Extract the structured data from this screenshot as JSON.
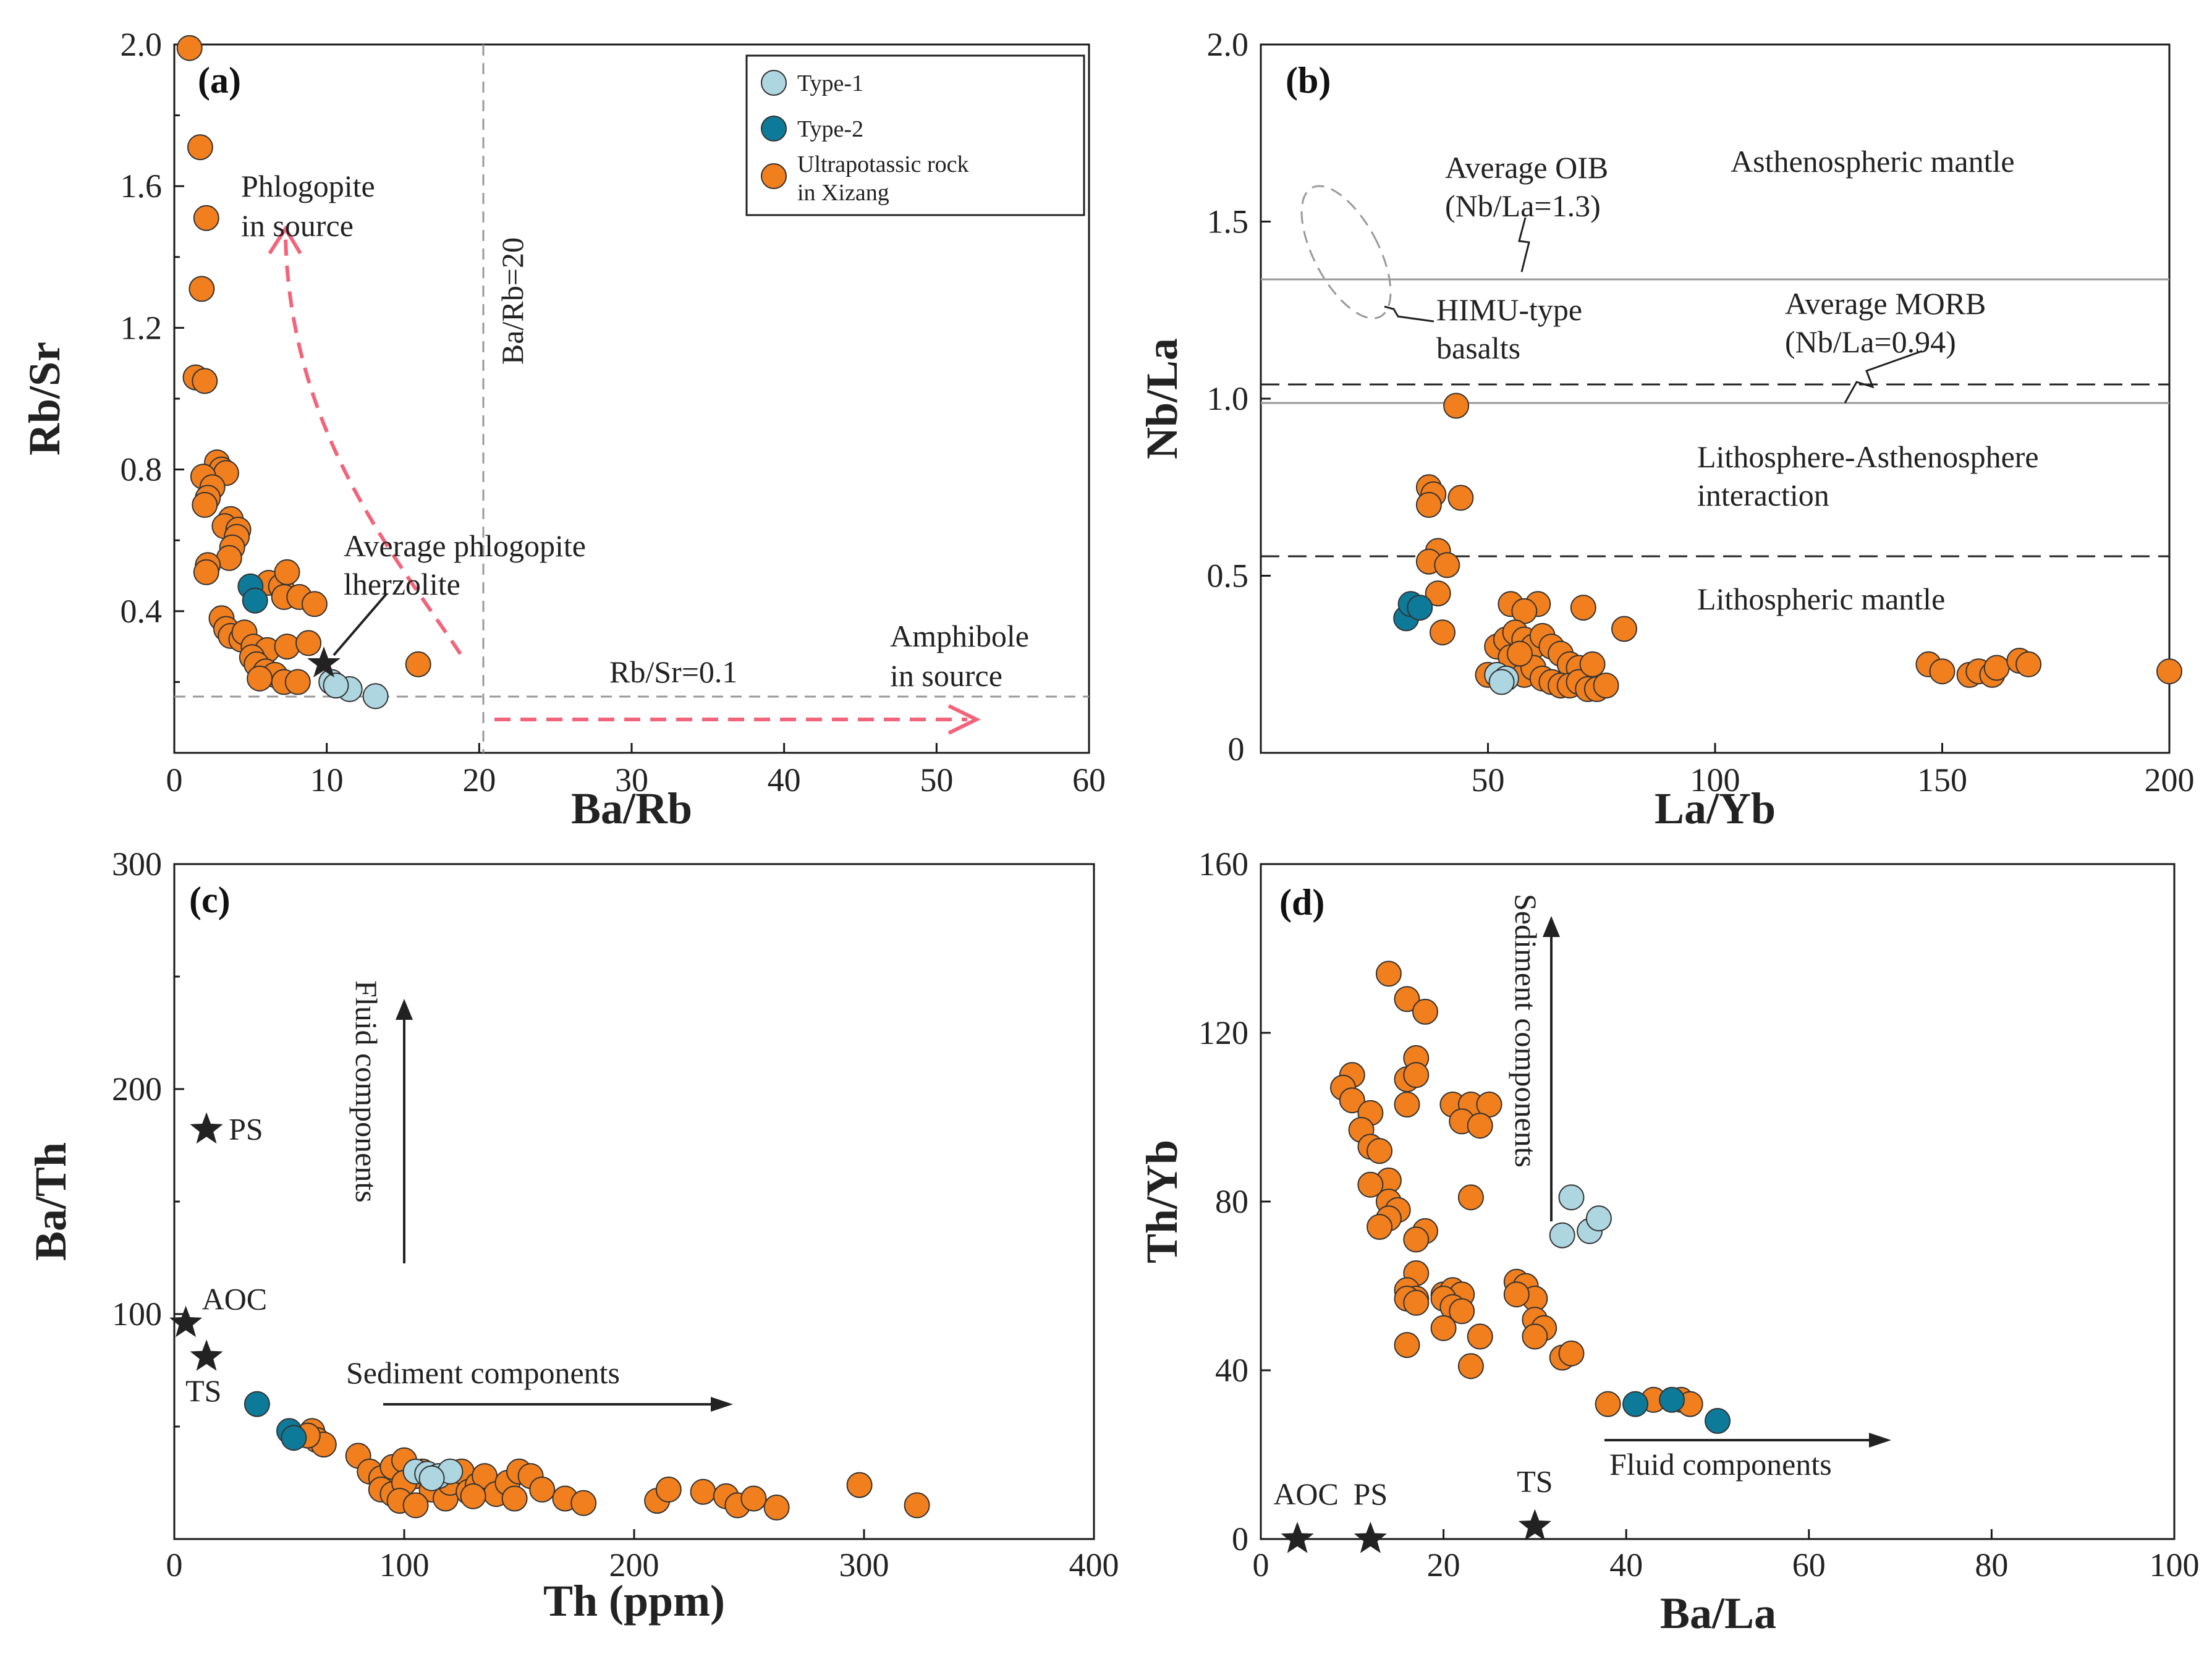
{
  "colors": {
    "type1": "#aed6e0",
    "type2": "#0e7a99",
    "ultrapotassic": "#f27f1d",
    "marker_edge": "#333333",
    "pink_arrow": "#f2647a"
  },
  "legend": {
    "type1": "Type-1",
    "type2": "Type-2",
    "ultrapotassic_line1": "Ultrapotassic rock",
    "ultrapotassic_line2": "in Xizang"
  },
  "chart_data": [
    {
      "id": "a",
      "panel_label": "(a)",
      "type": "scatter",
      "xlabel": "Ba/Rb",
      "ylabel": "Rb/Sr",
      "xlim": [
        0,
        60
      ],
      "ylim": [
        0,
        2.0
      ],
      "xticks": [
        0,
        10,
        20,
        30,
        40,
        50,
        60
      ],
      "yticks": [
        0.4,
        0.8,
        1.2,
        1.6,
        2.0
      ],
      "ytick_labels": [
        "0.4",
        "0.8",
        "1.2",
        "1.6",
        "2.0"
      ],
      "annotations": {
        "phlogopite_1": "Phlogopite",
        "phlogopite_2": "in source",
        "ba_rb_line": "Ba/Rb=20",
        "avg_phl_1": "Average phlogopite",
        "avg_phl_2": "lherzolite",
        "rb_sr_line": "Rb/Sr=0.1",
        "amph_1": "Amphibole",
        "amph_2": "in source"
      },
      "series": [
        {
          "name": "Type-1",
          "points": [
            [
              10.3,
              0.2
            ],
            [
              11.5,
              0.18
            ],
            [
              13.2,
              0.16
            ],
            [
              10.6,
              0.19
            ]
          ]
        },
        {
          "name": "Type-2",
          "points": [
            [
              5.0,
              0.47
            ],
            [
              5.3,
              0.43
            ]
          ]
        },
        {
          "name": "Ultrapotassic rock in Xizang",
          "points": [
            [
              1.0,
              1.99
            ],
            [
              1.7,
              1.71
            ],
            [
              2.1,
              1.51
            ],
            [
              1.8,
              1.31
            ],
            [
              1.4,
              1.06
            ],
            [
              2.0,
              1.05
            ],
            [
              2.8,
              0.82
            ],
            [
              3.1,
              0.8
            ],
            [
              3.4,
              0.79
            ],
            [
              1.9,
              0.78
            ],
            [
              2.5,
              0.75
            ],
            [
              2.2,
              0.72
            ],
            [
              2.0,
              0.7
            ],
            [
              3.7,
              0.66
            ],
            [
              3.3,
              0.64
            ],
            [
              4.2,
              0.63
            ],
            [
              4.1,
              0.61
            ],
            [
              3.8,
              0.58
            ],
            [
              3.6,
              0.55
            ],
            [
              2.2,
              0.53
            ],
            [
              2.1,
              0.51
            ],
            [
              6.2,
              0.48
            ],
            [
              7.0,
              0.47
            ],
            [
              7.2,
              0.44
            ],
            [
              7.4,
              0.51
            ],
            [
              8.2,
              0.44
            ],
            [
              9.2,
              0.42
            ],
            [
              3.1,
              0.38
            ],
            [
              3.4,
              0.35
            ],
            [
              3.7,
              0.33
            ],
            [
              4.4,
              0.32
            ],
            [
              4.6,
              0.34
            ],
            [
              5.2,
              0.3
            ],
            [
              6.1,
              0.29
            ],
            [
              7.4,
              0.3
            ],
            [
              8.8,
              0.31
            ],
            [
              5.1,
              0.27
            ],
            [
              5.4,
              0.25
            ],
            [
              6.0,
              0.23
            ],
            [
              6.6,
              0.22
            ],
            [
              7.2,
              0.2
            ],
            [
              5.6,
              0.21
            ],
            [
              8.1,
              0.2
            ],
            [
              16.0,
              0.25
            ]
          ]
        }
      ],
      "reference_lines": {
        "ba_rb": 20,
        "rb_sr": 0.1
      },
      "average_phlogopite_lherzolite": [
        9.0,
        0.2
      ]
    },
    {
      "id": "b",
      "panel_label": "(b)",
      "type": "scatter",
      "xlabel": "La/Yb",
      "ylabel": "Nb/La",
      "xlim": [
        0,
        200
      ],
      "ylim": [
        0,
        2.0
      ],
      "xticks": [
        50,
        100,
        150,
        200
      ],
      "yticks": [
        0.5,
        1.0,
        1.5,
        2.0
      ],
      "ytick_labels": [
        "0.5",
        "1.0",
        "1.5",
        "2.0"
      ],
      "annotations": {
        "oib_1": "Average OIB",
        "oib_2": "(Nb/La=1.3)",
        "asth": "Asthenospheric mantle",
        "himu_1": "HIMU-type",
        "himu_2": "basalts",
        "morb_1": "Average MORB",
        "morb_2": "(Nb/La=0.94)",
        "lai_1": "Lithosphere-Asthenosphere",
        "lai_2": "interaction",
        "lith": "Lithospheric mantle"
      },
      "series": [
        {
          "name": "Type-1",
          "points": [
            [
              52,
              0.22
            ],
            [
              54,
              0.21
            ],
            [
              53,
              0.2
            ]
          ]
        },
        {
          "name": "Type-2",
          "points": [
            [
              32,
              0.38
            ],
            [
              33,
              0.42
            ],
            [
              35,
              0.41
            ]
          ]
        },
        {
          "name": "Ultrapotassic rock in Xizang",
          "points": [
            [
              43,
              0.98
            ],
            [
              37,
              0.75
            ],
            [
              38,
              0.73
            ],
            [
              37,
              0.7
            ],
            [
              44,
              0.72
            ],
            [
              39,
              0.57
            ],
            [
              37,
              0.54
            ],
            [
              41,
              0.53
            ],
            [
              39,
              0.45
            ],
            [
              40,
              0.34
            ],
            [
              55,
              0.42
            ],
            [
              61,
              0.42
            ],
            [
              58,
              0.4
            ],
            [
              71,
              0.41
            ],
            [
              80,
              0.35
            ],
            [
              52,
              0.3
            ],
            [
              54,
              0.32
            ],
            [
              56,
              0.34
            ],
            [
              58,
              0.32
            ],
            [
              60,
              0.3
            ],
            [
              62,
              0.33
            ],
            [
              64,
              0.3
            ],
            [
              66,
              0.28
            ],
            [
              68,
              0.25
            ],
            [
              70,
              0.24
            ],
            [
              55,
              0.27
            ],
            [
              58,
              0.22
            ],
            [
              60,
              0.24
            ],
            [
              62,
              0.21
            ],
            [
              64,
              0.2
            ],
            [
              66,
              0.19
            ],
            [
              68,
              0.19
            ],
            [
              70,
              0.2
            ],
            [
              72,
              0.18
            ],
            [
              74,
              0.18
            ],
            [
              76,
              0.19
            ],
            [
              73,
              0.25
            ],
            [
              50,
              0.22
            ],
            [
              57,
              0.28
            ],
            [
              147,
              0.25
            ],
            [
              150,
              0.23
            ],
            [
              156,
              0.22
            ],
            [
              158,
              0.23
            ],
            [
              161,
              0.22
            ],
            [
              162,
              0.24
            ],
            [
              167,
              0.26
            ],
            [
              169,
              0.25
            ],
            [
              200,
              0.23
            ]
          ]
        }
      ],
      "reference_lines": {
        "oib": 1.3,
        "morb": 0.94,
        "dashed": [
          1.0,
          0.5
        ]
      }
    },
    {
      "id": "c",
      "panel_label": "(c)",
      "type": "scatter",
      "xlabel": "Th (ppm)",
      "ylabel": "Ba/Th",
      "xlim": [
        0,
        400
      ],
      "ylim": [
        0,
        300
      ],
      "xticks": [
        0,
        100,
        200,
        300,
        400
      ],
      "yticks": [
        100,
        200,
        300
      ],
      "ytick_labels": [
        "100",
        "200",
        "300"
      ],
      "annotations": {
        "fluid": "Fluid components",
        "sediment": "Sediment components"
      },
      "stars": [
        {
          "label": "PS",
          "x": 14,
          "y": 182
        },
        {
          "label": "AOC",
          "x": 5,
          "y": 96
        },
        {
          "label": "TS",
          "x": 14,
          "y": 81
        }
      ],
      "series": [
        {
          "name": "Type-1",
          "points": [
            [
              105,
              30
            ],
            [
              110,
              29
            ],
            [
              115,
              28
            ],
            [
              120,
              30
            ],
            [
              112,
              27
            ]
          ]
        },
        {
          "name": "Type-2",
          "points": [
            [
              36,
              60
            ],
            [
              50,
              48
            ],
            [
              52,
              45
            ]
          ]
        },
        {
          "name": "Ultrapotassic rock in Xizang",
          "points": [
            [
              60,
              48
            ],
            [
              62,
              44
            ],
            [
              65,
              42
            ],
            [
              58,
              46
            ],
            [
              80,
              37
            ],
            [
              85,
              30
            ],
            [
              90,
              27
            ],
            [
              95,
              32
            ],
            [
              100,
              35
            ],
            [
              105,
              28
            ],
            [
              90,
              22
            ],
            [
              95,
              20
            ],
            [
              100,
              25
            ],
            [
              108,
              30
            ],
            [
              112,
              22
            ],
            [
              118,
              18
            ],
            [
              120,
              25
            ],
            [
              125,
              30
            ],
            [
              128,
              21
            ],
            [
              132,
              24
            ],
            [
              135,
              28
            ],
            [
              140,
              20
            ],
            [
              145,
              25
            ],
            [
              150,
              30
            ],
            [
              155,
              28
            ],
            [
              148,
              18
            ],
            [
              160,
              22
            ],
            [
              170,
              18
            ],
            [
              178,
              16
            ],
            [
              210,
              17
            ],
            [
              215,
              22
            ],
            [
              230,
              21
            ],
            [
              240,
              19
            ],
            [
              245,
              15
            ],
            [
              252,
              18
            ],
            [
              262,
              14
            ],
            [
              298,
              24
            ],
            [
              323,
              15
            ],
            [
              130,
              19
            ],
            [
              98,
              17
            ],
            [
              105,
              15
            ]
          ]
        }
      ]
    },
    {
      "id": "d",
      "panel_label": "(d)",
      "type": "scatter",
      "xlabel": "Ba/La",
      "ylabel": "Th/Yb",
      "xlim": [
        0,
        100
      ],
      "ylim": [
        0,
        160
      ],
      "xticks": [
        0,
        20,
        40,
        60,
        80,
        100
      ],
      "yticks": [
        0,
        40,
        80,
        120,
        160
      ],
      "ytick_labels": [
        "0",
        "40",
        "80",
        "120",
        "160"
      ],
      "annotations": {
        "sediment": "Sediment components",
        "fluid": "Fluid components"
      },
      "stars": [
        {
          "label": "AOC",
          "x": 4,
          "y": 0
        },
        {
          "label": "PS",
          "x": 12,
          "y": 0
        },
        {
          "label": "TS",
          "x": 30,
          "y": 3
        }
      ],
      "series": [
        {
          "name": "Type-1",
          "points": [
            [
              33,
              72
            ],
            [
              34,
              81
            ],
            [
              36,
              73
            ],
            [
              37,
              76
            ]
          ]
        },
        {
          "name": "Type-2",
          "points": [
            [
              41,
              32
            ],
            [
              45,
              33
            ],
            [
              50,
              28
            ]
          ]
        },
        {
          "name": "Ultrapotassic rock in Xizang",
          "points": [
            [
              14,
              134
            ],
            [
              16,
              128
            ],
            [
              18,
              125
            ],
            [
              10,
              110
            ],
            [
              9,
              107
            ],
            [
              16,
              109
            ],
            [
              17,
              114
            ],
            [
              17,
              110
            ],
            [
              10,
              104
            ],
            [
              16,
              103
            ],
            [
              12,
              101
            ],
            [
              21,
              103
            ],
            [
              23,
              103
            ],
            [
              25,
              103
            ],
            [
              22,
              99
            ],
            [
              24,
              98
            ],
            [
              11,
              97
            ],
            [
              12,
              93
            ],
            [
              13,
              92
            ],
            [
              14,
              85
            ],
            [
              12,
              84
            ],
            [
              14,
              80
            ],
            [
              15,
              78
            ],
            [
              14,
              76
            ],
            [
              13,
              74
            ],
            [
              18,
              73
            ],
            [
              17,
              71
            ],
            [
              23,
              81
            ],
            [
              17,
              63
            ],
            [
              16,
              59
            ],
            [
              17,
              57
            ],
            [
              16,
              57
            ],
            [
              17,
              56
            ],
            [
              20,
              58
            ],
            [
              21,
              59
            ],
            [
              22,
              58
            ],
            [
              20,
              57
            ],
            [
              21,
              55
            ],
            [
              20,
              50
            ],
            [
              22,
              54
            ],
            [
              28,
              61
            ],
            [
              29,
              60
            ],
            [
              30,
              57
            ],
            [
              28,
              58
            ],
            [
              30,
              52
            ],
            [
              31,
              50
            ],
            [
              30,
              48
            ],
            [
              24,
              48
            ],
            [
              16,
              46
            ],
            [
              23,
              41
            ],
            [
              33,
              43
            ],
            [
              34,
              44
            ],
            [
              38,
              32
            ],
            [
              43,
              33
            ],
            [
              46,
              33
            ],
            [
              47,
              32
            ]
          ]
        }
      ]
    }
  ]
}
